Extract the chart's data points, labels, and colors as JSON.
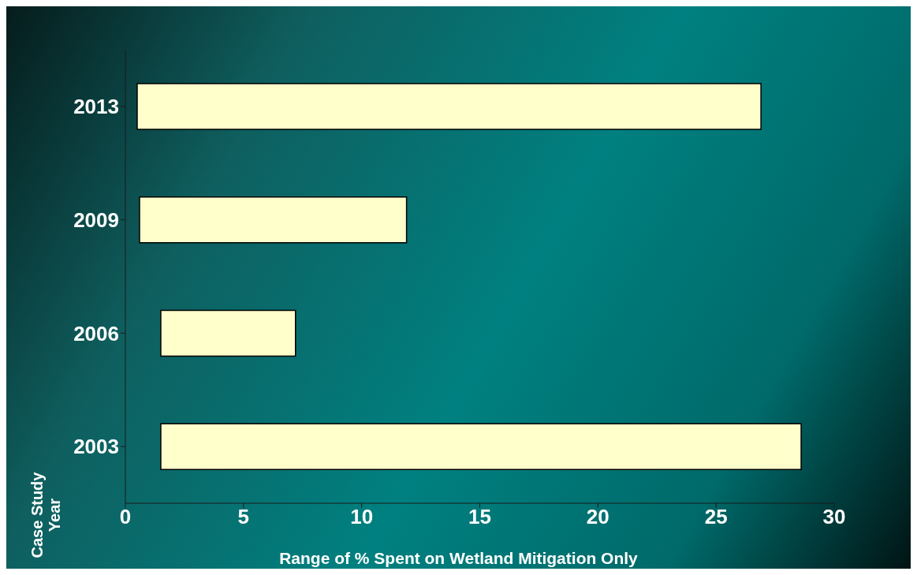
{
  "chart_data": {
    "type": "bar",
    "orientation": "horizontal",
    "xlabel": "Range of % Spent on Wetland Mitigation Only",
    "ylabel": "Case Study Year",
    "categories": [
      "2013",
      "2009",
      "2006",
      "2003"
    ],
    "values": [
      26.4,
      11.3,
      5.7,
      27.1
    ],
    "base": [
      0.5,
      0.6,
      1.5,
      1.5
    ],
    "color": "#ffffcc",
    "xlim": [
      0,
      30
    ],
    "xticks": [
      0,
      5,
      10,
      15,
      20,
      25,
      30
    ],
    "grid": false,
    "legend": false
  }
}
